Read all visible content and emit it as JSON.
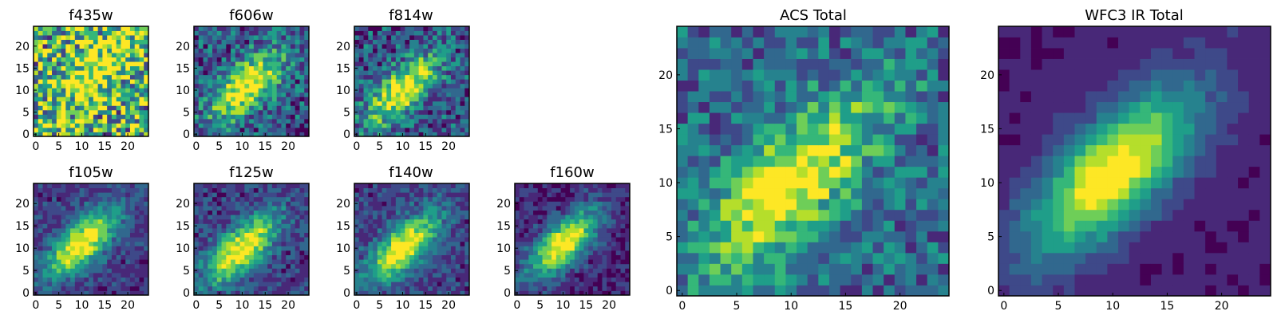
{
  "colormap": [
    "#440154",
    "#482878",
    "#3e4989",
    "#31688e",
    "#26828e",
    "#1f9e89",
    "#35b779",
    "#6ece58",
    "#b5de2b",
    "#fde725"
  ],
  "chart_data": [
    {
      "type": "heatmap",
      "title": "f435w",
      "grid_size": 25,
      "xticks": [
        0,
        5,
        10,
        15,
        20
      ],
      "yticks": [
        0,
        5,
        10,
        15,
        20
      ],
      "ylim": [
        0,
        24
      ],
      "xlim": [
        0,
        24
      ],
      "grid": false,
      "noise": 0.65,
      "peak": [
        14,
        15
      ],
      "seed": 1,
      "base": 0.62
    },
    {
      "type": "heatmap",
      "title": "f606w",
      "grid_size": 25,
      "xticks": [
        0,
        5,
        10,
        15,
        20
      ],
      "yticks": [
        0,
        5,
        10,
        15,
        20
      ],
      "ylim": [
        0,
        24
      ],
      "xlim": [
        0,
        24
      ],
      "grid": false,
      "noise": 0.35,
      "peak": [
        11,
        11
      ],
      "seed": 2,
      "base": 0.3
    },
    {
      "type": "heatmap",
      "title": "f814w",
      "grid_size": 25,
      "xticks": [
        0,
        5,
        10,
        15,
        20
      ],
      "yticks": [
        0,
        5,
        10,
        15,
        20
      ],
      "ylim": [
        0,
        24
      ],
      "xlim": [
        0,
        24
      ],
      "grid": false,
      "noise": 0.35,
      "peak": [
        10,
        10
      ],
      "seed": 3,
      "base": 0.28
    },
    {
      "type": "heatmap",
      "title": "f105w",
      "grid_size": 25,
      "xticks": [
        0,
        5,
        10,
        15,
        20
      ],
      "yticks": [
        0,
        5,
        10,
        15,
        20
      ],
      "ylim": [
        0,
        24
      ],
      "xlim": [
        0,
        24
      ],
      "grid": false,
      "noise": 0.18,
      "peak": [
        10,
        11
      ],
      "seed": 4,
      "base": 0.2
    },
    {
      "type": "heatmap",
      "title": "f125w",
      "grid_size": 25,
      "xticks": [
        0,
        5,
        10,
        15,
        20
      ],
      "yticks": [
        0,
        5,
        10,
        15,
        20
      ],
      "ylim": [
        0,
        24
      ],
      "xlim": [
        0,
        24
      ],
      "grid": false,
      "noise": 0.22,
      "peak": [
        10,
        10
      ],
      "seed": 5,
      "base": 0.22
    },
    {
      "type": "heatmap",
      "title": "f140w",
      "grid_size": 25,
      "xticks": [
        0,
        5,
        10,
        15,
        20
      ],
      "yticks": [
        0,
        5,
        10,
        15,
        20
      ],
      "ylim": [
        0,
        24
      ],
      "xlim": [
        0,
        24
      ],
      "grid": false,
      "noise": 0.2,
      "peak": [
        10,
        10
      ],
      "seed": 6,
      "base": 0.22
    },
    {
      "type": "heatmap",
      "title": "f160w",
      "grid_size": 25,
      "xticks": [
        0,
        5,
        10,
        15,
        20
      ],
      "yticks": [
        0,
        5,
        10,
        15,
        20
      ],
      "ylim": [
        0,
        24
      ],
      "xlim": [
        0,
        24
      ],
      "grid": false,
      "noise": 0.18,
      "peak": [
        10,
        11
      ],
      "seed": 7,
      "base": 0.15
    },
    {
      "type": "heatmap",
      "title": "ACS Total",
      "grid_size": 25,
      "xticks": [
        0,
        5,
        10,
        15,
        20
      ],
      "yticks": [
        0,
        5,
        10,
        15,
        20
      ],
      "ylim": [
        0,
        24
      ],
      "xlim": [
        0,
        24
      ],
      "grid": false,
      "noise": 0.3,
      "peak": [
        10,
        10
      ],
      "seed": 8,
      "base": 0.35
    },
    {
      "type": "heatmap",
      "title": "WFC3 IR Total",
      "grid_size": 25,
      "xticks": [
        0,
        5,
        10,
        15,
        20
      ],
      "yticks": [
        0,
        5,
        10,
        15,
        20
      ],
      "ylim": [
        0,
        24
      ],
      "xlim": [
        0,
        24
      ],
      "grid": false,
      "noise": 0.06,
      "peak": [
        10,
        11
      ],
      "seed": 9,
      "base": 0.12
    }
  ]
}
